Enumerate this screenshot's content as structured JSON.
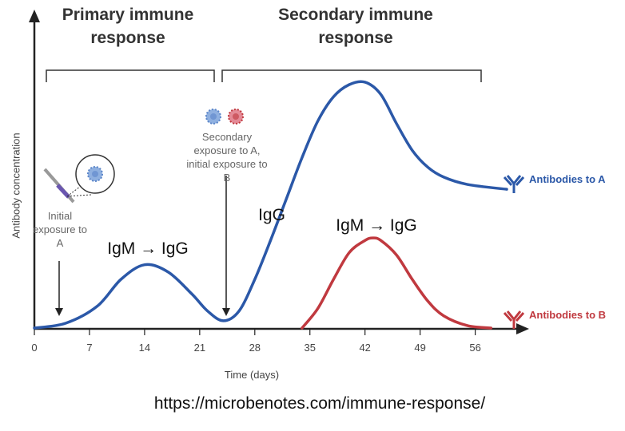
{
  "headers": {
    "primary": "Primary immune response",
    "secondary": "Secondary immune response"
  },
  "annotations": {
    "initial": "Initial exposure to A",
    "secondary": "Secondary exposure to A, initial exposure to B",
    "igm_igg_1": "IgM → IgG",
    "igg": "IgG",
    "igm_igg_2": "IgM → IgG"
  },
  "source": "https://microbenotes.com/immune-response/",
  "chart_data": {
    "type": "line",
    "xlabel": "Time (days)",
    "ylabel": "Antibody concentration",
    "xlim": [
      0,
      63
    ],
    "ylim": [
      0,
      130
    ],
    "xticks": [
      "0",
      "7",
      "14",
      "21",
      "28",
      "35",
      "42",
      "49",
      "56"
    ],
    "legend_placement": "right",
    "series": [
      {
        "name": "Antibodies to A",
        "color": "#2b58a8",
        "x": [
          0,
          4,
          8,
          11,
          14,
          17,
          20,
          22,
          24,
          26,
          28,
          30,
          32,
          34,
          36,
          38,
          40,
          42,
          44,
          46,
          48,
          50,
          52,
          55,
          60
        ],
        "y": [
          0,
          2,
          9,
          20,
          26,
          23,
          14,
          7,
          3,
          7,
          20,
          36,
          53,
          70,
          85,
          95,
          100,
          101,
          96,
          84,
          73,
          66,
          62,
          59,
          57
        ]
      },
      {
        "name": "Antibodies to B",
        "color": "#c0393f",
        "x": [
          34,
          36,
          38,
          40,
          42,
          43,
          44,
          46,
          48,
          50,
          52,
          55,
          58
        ],
        "y": [
          0,
          8,
          20,
          31,
          36,
          37,
          36,
          30,
          20,
          11,
          5,
          1,
          0
        ]
      }
    ]
  },
  "colors": {
    "a": "#2b58a8",
    "b": "#c0393f",
    "axis": "#222"
  }
}
